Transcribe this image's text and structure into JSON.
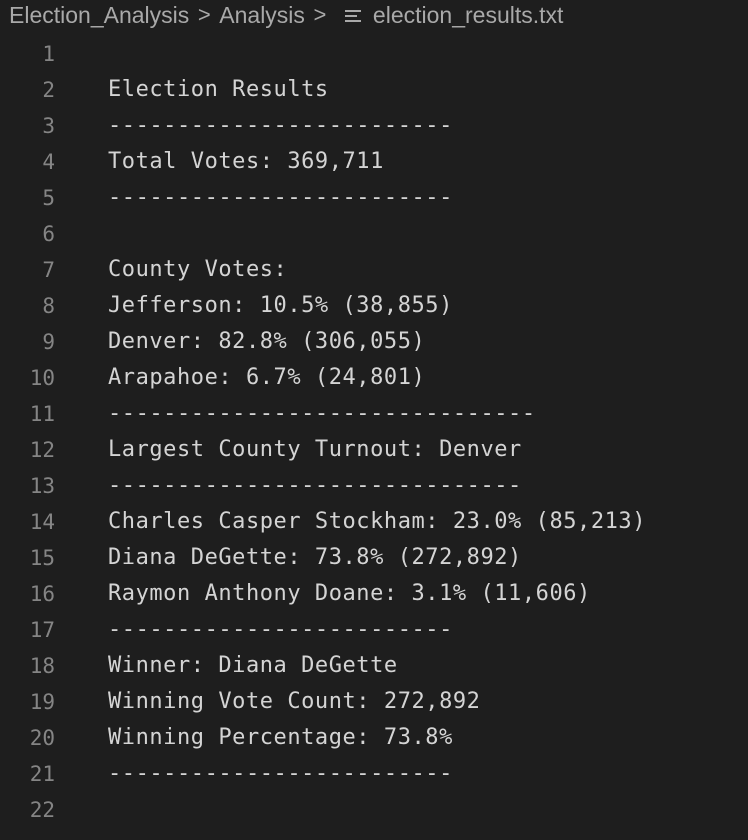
{
  "breadcrumb": {
    "items": [
      "Election_Analysis",
      "Analysis"
    ],
    "separator": ">",
    "file": "election_results.txt",
    "file_icon": "text-lines-icon"
  },
  "editor": {
    "lines": [
      {
        "n": "1",
        "text": ""
      },
      {
        "n": "2",
        "text": "Election Results"
      },
      {
        "n": "3",
        "text": "-------------------------"
      },
      {
        "n": "4",
        "text": "Total Votes: 369,711"
      },
      {
        "n": "5",
        "text": "-------------------------"
      },
      {
        "n": "6",
        "text": ""
      },
      {
        "n": "7",
        "text": "County Votes:"
      },
      {
        "n": "8",
        "text": "Jefferson: 10.5% (38,855)"
      },
      {
        "n": "9",
        "text": "Denver: 82.8% (306,055)"
      },
      {
        "n": "10",
        "text": "Arapahoe: 6.7% (24,801)"
      },
      {
        "n": "11",
        "text": "-------------------------------"
      },
      {
        "n": "12",
        "text": "Largest County Turnout: Denver"
      },
      {
        "n": "13",
        "text": "------------------------------"
      },
      {
        "n": "14",
        "text": "Charles Casper Stockham: 23.0% (85,213)"
      },
      {
        "n": "15",
        "text": "Diana DeGette: 73.8% (272,892)"
      },
      {
        "n": "16",
        "text": "Raymon Anthony Doane: 3.1% (11,606)"
      },
      {
        "n": "17",
        "text": "-------------------------"
      },
      {
        "n": "18",
        "text": "Winner: Diana DeGette"
      },
      {
        "n": "19",
        "text": "Winning Vote Count: 272,892"
      },
      {
        "n": "20",
        "text": "Winning Percentage: 73.8%"
      },
      {
        "n": "21",
        "text": "-------------------------"
      },
      {
        "n": "22",
        "text": ""
      }
    ]
  }
}
